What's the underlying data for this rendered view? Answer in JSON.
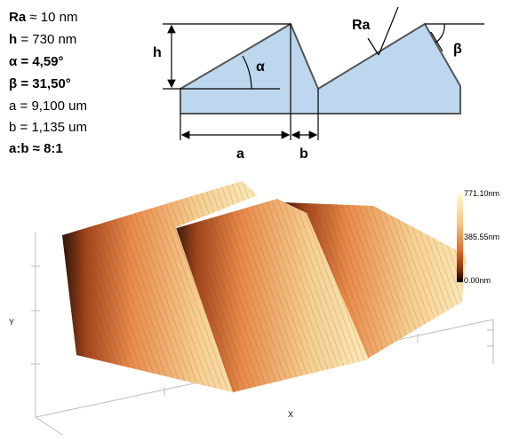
{
  "parameters": [
    {
      "label": "Ra",
      "value": "≈ 10 nm"
    },
    {
      "label": "h",
      "value": "= 730 nm"
    },
    {
      "label": "α",
      "value": "= 4,59°"
    },
    {
      "label": "β",
      "value": "= 31,50°"
    },
    {
      "label": "a",
      "value": "= 9,100 um"
    },
    {
      "label": "b",
      "value": "= 1,135 um"
    },
    {
      "label": "a:b",
      "value": "≈ 8:1"
    }
  ],
  "diagram": {
    "h": "h",
    "alpha": "α",
    "a": "a",
    "b": "b",
    "ra": "Ra",
    "beta": "β"
  },
  "surface": {
    "colorbar": [
      "771.10nm",
      "385.55nm",
      "0.00nm"
    ],
    "x_label": "X",
    "y_label": "Y"
  }
}
